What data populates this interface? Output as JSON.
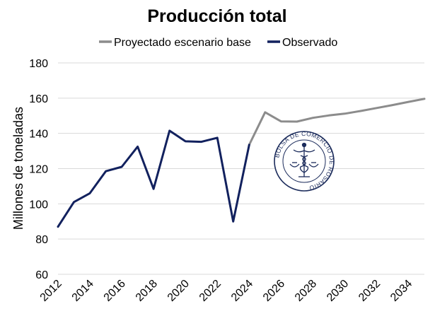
{
  "chart_data": {
    "type": "line",
    "title": "Producción total",
    "ylabel": "Millones de toneladas",
    "xlabel": "",
    "ylim": [
      60,
      180
    ],
    "yticks": [
      60,
      80,
      100,
      120,
      140,
      160,
      180
    ],
    "xlim": [
      2012,
      2035
    ],
    "xticks": [
      "2012",
      "2014",
      "2016",
      "2018",
      "2020",
      "2022",
      "2024",
      "2026",
      "2028",
      "2030",
      "2032",
      "2034"
    ],
    "grid": true,
    "legend_position": "top",
    "series": [
      {
        "name": "Proyectado escenario base",
        "color": "#8c8c8c",
        "x": [
          2024,
          2025,
          2026,
          2027,
          2028,
          2029,
          2030,
          2031,
          2032,
          2033,
          2034,
          2035
        ],
        "values": [
          133.5,
          152,
          146.8,
          146.7,
          148.8,
          150.2,
          151.2,
          152.7,
          154.4,
          156.1,
          157.9,
          159.6
        ]
      },
      {
        "name": "Observado",
        "color": "#12215e",
        "x": [
          2012,
          2013,
          2014,
          2015,
          2016,
          2017,
          2018,
          2019,
          2020,
          2021,
          2022,
          2023,
          2024
        ],
        "values": [
          87,
          101,
          106,
          118.5,
          121,
          132.5,
          108.5,
          141.5,
          135.5,
          135.2,
          137.5,
          90,
          133.5
        ]
      }
    ]
  },
  "watermark": {
    "text": "BOLSA DE COMERCIO DE ROSARIO",
    "color": "#1b2b5b"
  }
}
